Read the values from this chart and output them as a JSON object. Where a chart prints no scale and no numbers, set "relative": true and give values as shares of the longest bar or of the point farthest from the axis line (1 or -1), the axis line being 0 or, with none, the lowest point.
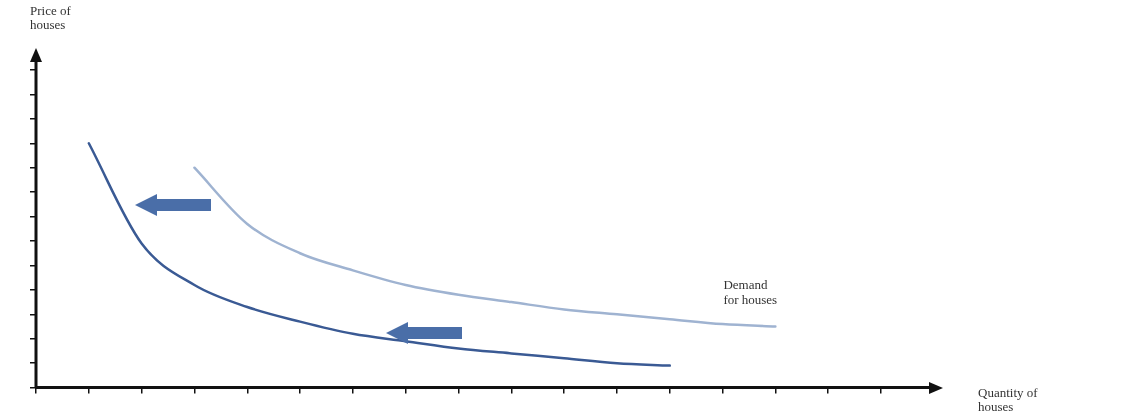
{
  "chart_data": {
    "type": "line",
    "relative": true,
    "xlabel": "Quantity of houses",
    "categories": [
      null,
      null,
      null,
      null,
      null,
      null,
      null,
      null,
      null,
      null,
      null,
      null,
      null,
      null,
      null,
      null,
      null
    ],
    "series": [
      {
        "color": "#3a5a94",
        "values": [
          null,
          1,
          0.59,
          0.42,
          0.33,
          0.27,
          0.22,
          0.19,
          0.16,
          0.14,
          0.12,
          0.1,
          0.09,
          null,
          null,
          null,
          null
        ]
      },
      {
        "color": "#9fb3d1",
        "values": [
          null,
          null,
          null,
          0.9,
          0.67,
          0.55,
          0.48,
          0.42,
          0.38,
          0.35,
          0.32,
          0.3,
          0.28,
          0.26,
          0.25,
          null,
          null
        ]
      }
    ],
    "annotations": [
      "Price of houses",
      "Demand for houses"
    ],
    "grid": false,
    "legend": false,
    "marker": "none",
    "line_style": "solid"
  }
}
